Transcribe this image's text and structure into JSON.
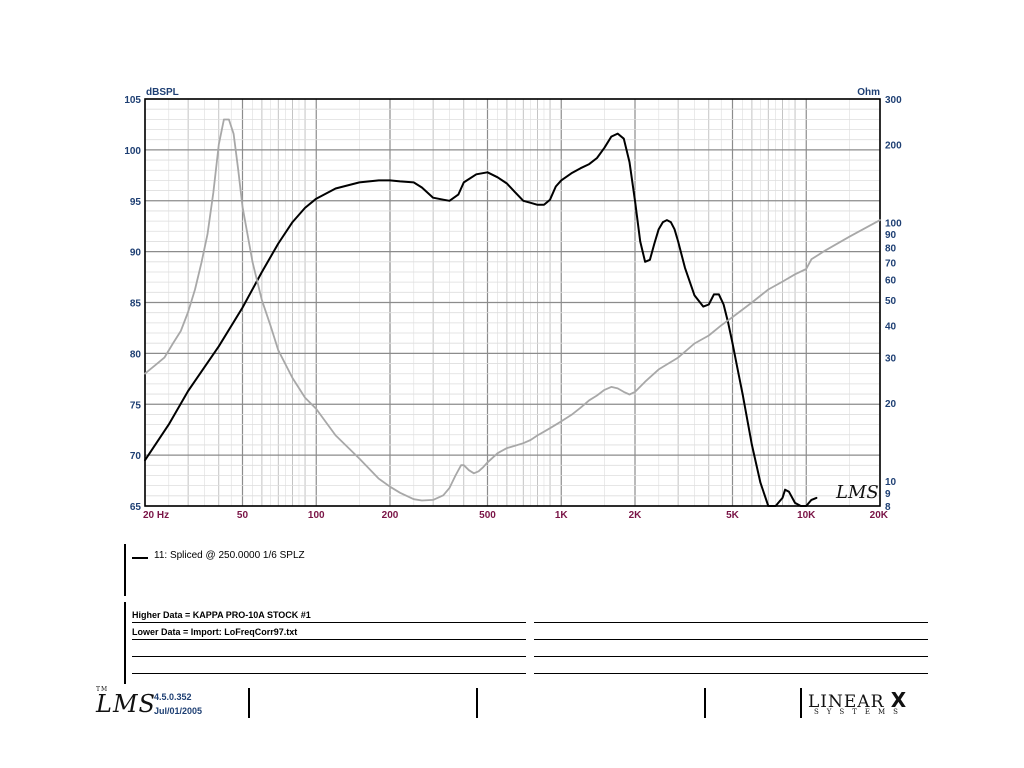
{
  "chart_data": {
    "type": "line",
    "title": "",
    "left_axis_label": "dBSPL",
    "right_axis_label": "Ohm",
    "xscale": "log",
    "xlim": [
      20,
      20000
    ],
    "ylim_left": [
      65,
      105
    ],
    "ylim_right": [
      8,
      300
    ],
    "right_scale": "log",
    "grid": true,
    "left_ticks": [
      "65",
      "70",
      "75",
      "80",
      "85",
      "90",
      "95",
      "100",
      "105"
    ],
    "right_ticks": [
      {
        "label": "8",
        "value": 8
      },
      {
        "label": "9",
        "value": 9
      },
      {
        "label": "10",
        "value": 10
      },
      {
        "label": "20",
        "value": 20
      },
      {
        "label": "30",
        "value": 30
      },
      {
        "label": "40",
        "value": 40
      },
      {
        "label": "50",
        "value": 50
      },
      {
        "label": "60",
        "value": 60
      },
      {
        "label": "70",
        "value": 70
      },
      {
        "label": "80",
        "value": 80
      },
      {
        "label": "90",
        "value": 90
      },
      {
        "label": "100",
        "value": 100
      },
      {
        "label": "200",
        "value": 200
      },
      {
        "label": "300",
        "value": 300
      }
    ],
    "x_ticks": [
      {
        "label": "20  Hz",
        "value": 20
      },
      {
        "label": "50",
        "value": 50
      },
      {
        "label": "100",
        "value": 100
      },
      {
        "label": "200",
        "value": 200
      },
      {
        "label": "500",
        "value": 500
      },
      {
        "label": "1K",
        "value": 1000
      },
      {
        "label": "2K",
        "value": 2000
      },
      {
        "label": "5K",
        "value": 5000
      },
      {
        "label": "10K",
        "value": 10000
      },
      {
        "label": "20K",
        "value": 20000
      }
    ],
    "series": [
      {
        "name": "11: Spliced @ 250.0000 1/6 SPLZ",
        "axis": "left",
        "color": "#000000",
        "x": [
          20,
          25,
          30,
          40,
          50,
          60,
          70,
          80,
          90,
          100,
          120,
          150,
          180,
          200,
          220,
          250,
          270,
          300,
          330,
          350,
          380,
          400,
          450,
          500,
          550,
          600,
          650,
          700,
          750,
          800,
          850,
          900,
          950,
          1000,
          1100,
          1200,
          1300,
          1400,
          1500,
          1600,
          1700,
          1800,
          1900,
          2000,
          2100,
          2200,
          2300,
          2400,
          2500,
          2600,
          2700,
          2800,
          2900,
          3000,
          3200,
          3500,
          3800,
          4000,
          4200,
          4400,
          4600,
          4800,
          5000,
          5200,
          5500,
          6000,
          6500,
          7000,
          7500,
          8000,
          8200,
          8500,
          9000,
          9500,
          10000,
          10500,
          11000
        ],
        "y": [
          69.5,
          73,
          76.3,
          80.7,
          84.5,
          88,
          90.8,
          92.9,
          94.3,
          95.2,
          96.2,
          96.8,
          97,
          97,
          96.9,
          96.8,
          96.3,
          95.3,
          95.1,
          95,
          95.6,
          96.8,
          97.6,
          97.8,
          97.3,
          96.7,
          95.8,
          95.0,
          94.8,
          94.6,
          94.6,
          95.1,
          96.4,
          97.0,
          97.7,
          98.2,
          98.6,
          99.2,
          100.2,
          101.3,
          101.6,
          101.1,
          98.8,
          95,
          91,
          89.0,
          89.2,
          90.8,
          92.2,
          92.9,
          93.1,
          92.9,
          92.2,
          91.0,
          88.4,
          85.7,
          84.6,
          84.8,
          85.8,
          85.8,
          84.8,
          83.0,
          81.0,
          78.9,
          76.0,
          71,
          67.3,
          65,
          65,
          65.8,
          66.6,
          66.4,
          65.3,
          65,
          65,
          65.6,
          65.8
        ]
      },
      {
        "name": "",
        "axis": "right",
        "color": "#a8a8a8",
        "x": [
          20,
          22,
          24,
          26,
          28,
          30,
          32,
          34,
          36,
          38,
          40,
          42,
          44,
          46,
          48,
          50,
          55,
          60,
          65,
          70,
          80,
          90,
          100,
          120,
          150,
          180,
          200,
          220,
          250,
          270,
          300,
          330,
          350,
          370,
          390,
          400,
          420,
          440,
          460,
          480,
          500,
          550,
          600,
          650,
          700,
          750,
          800,
          850,
          900,
          950,
          1000,
          1100,
          1200,
          1300,
          1400,
          1500,
          1600,
          1700,
          1800,
          1900,
          2000,
          2200,
          2500,
          3000,
          3500,
          4000,
          4500,
          5000,
          6000,
          7000,
          8000,
          9000,
          10000,
          10500,
          12000,
          15000,
          20000
        ],
        "y": [
          26,
          28,
          30,
          34,
          38,
          45,
          55,
          70,
          90,
          130,
          200,
          250,
          250,
          220,
          160,
          115,
          70,
          50,
          40,
          32,
          25,
          21,
          19,
          15,
          12.2,
          10.2,
          9.5,
          9.0,
          8.5,
          8.4,
          8.45,
          8.8,
          9.4,
          10.5,
          11.5,
          11.5,
          11.0,
          10.7,
          10.9,
          11.3,
          11.8,
          12.8,
          13.4,
          13.7,
          14.0,
          14.4,
          15.0,
          15.5,
          16.0,
          16.5,
          17.0,
          18.0,
          19.2,
          20.5,
          21.4,
          22.5,
          23.1,
          22.8,
          22.1,
          21.6,
          22.1,
          24.2,
          27,
          30,
          34,
          36.5,
          40,
          43,
          49,
          55,
          59,
          63,
          66,
          72,
          78,
          88,
          102
        ]
      }
    ]
  },
  "legend": {
    "label": "11: Spliced @ 250.0000 1/6 SPLZ"
  },
  "notes": {
    "line1": "Higher Data = KAPPA PRO-10A STOCK #1",
    "line2": "Lower  Data = Import: LoFreqCorr97.txt"
  },
  "footer": {
    "logo": "LMS",
    "logo_mark": "TM",
    "version": "4.5.0.352",
    "date": "Jul/01/2005",
    "brand_line1": "LINEAR",
    "brand_x": "X",
    "brand_line2": "SYSTEMS",
    "plot_logo": "LMS"
  }
}
